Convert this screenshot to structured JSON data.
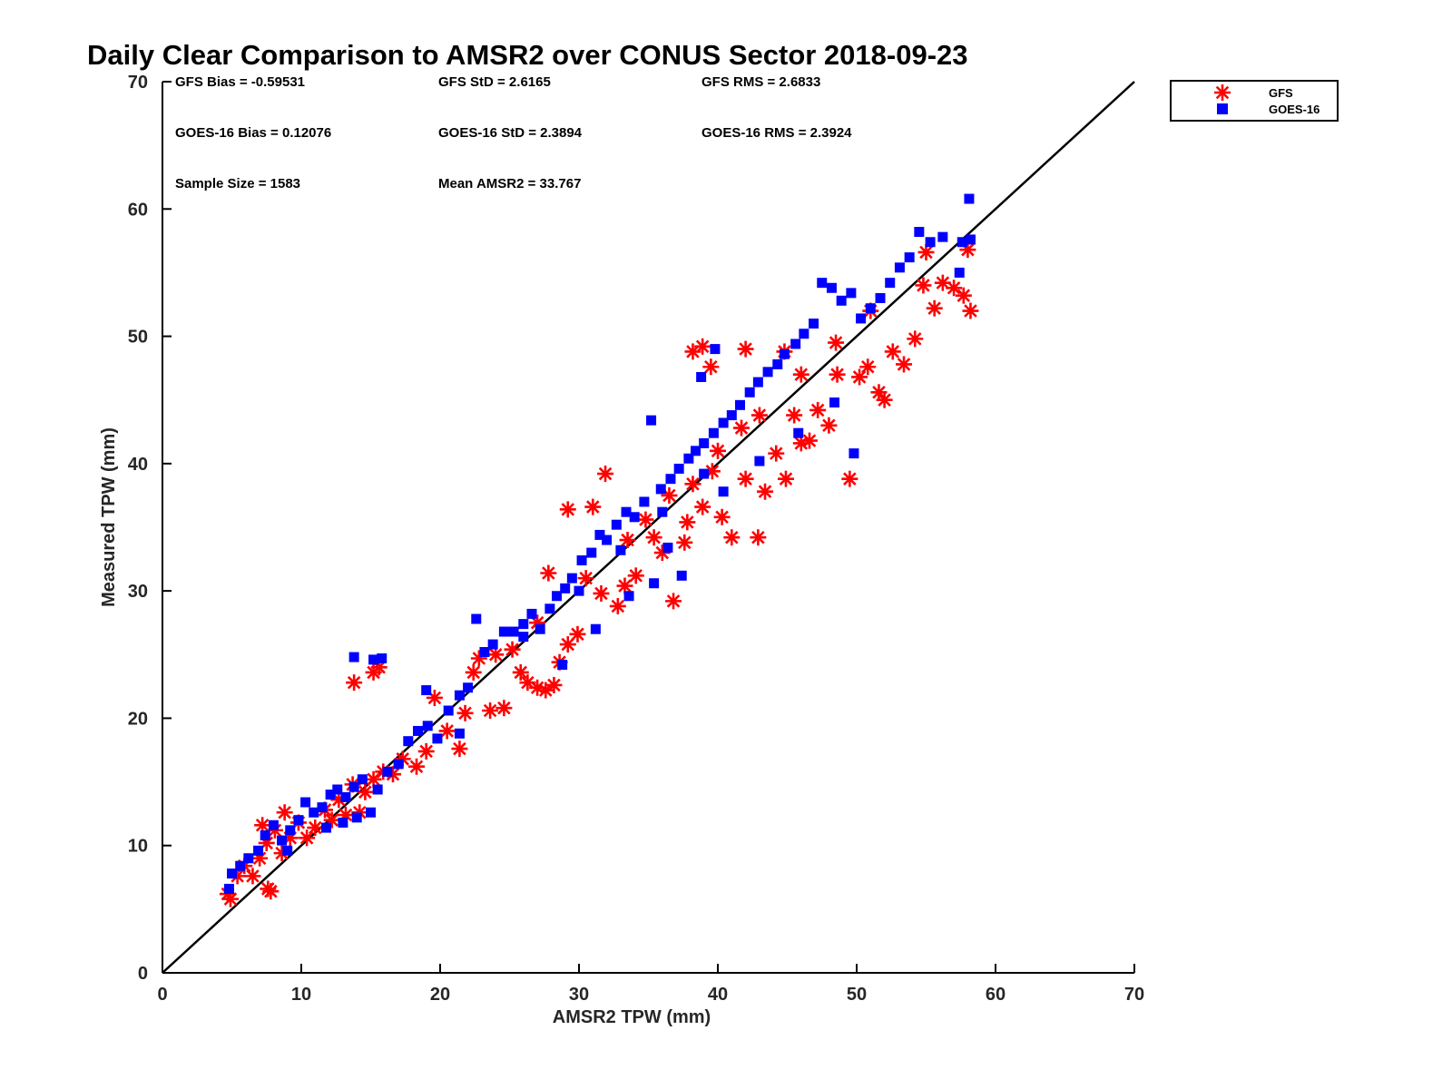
{
  "chart_data": {
    "type": "scatter",
    "title": "Daily Clear Comparison to AMSR2 over CONUS Sector 2018-09-23",
    "xlabel": "AMSR2 TPW (mm)",
    "ylabel": "Measured TPW (mm)",
    "xlim": [
      0,
      70
    ],
    "ylim": [
      0,
      70
    ],
    "x_ticks": [
      "0",
      "10",
      "20",
      "30",
      "40",
      "50",
      "60",
      "70"
    ],
    "y_ticks": [
      "0",
      "10",
      "20",
      "30",
      "40",
      "50",
      "60",
      "70"
    ],
    "grid": false,
    "legend_position": "outside-top-right",
    "reference_line": {
      "label": "1:1",
      "x": [
        0,
        70
      ],
      "y": [
        0,
        70
      ],
      "color": "#000000"
    },
    "stats": {
      "gfs_bias": "GFS Bias = -0.59531",
      "gfs_std": "GFS StD = 2.6165",
      "gfs_rms": "GFS RMS = 2.6833",
      "goes_bias": "GOES-16 Bias = 0.12076",
      "goes_std": "GOES-16 StD = 2.3894",
      "goes_rms": "GOES-16 RMS = 2.3924",
      "sample_size": "Sample Size = 1583",
      "mean_amsr2": "Mean AMSR2 = 33.767"
    },
    "series": [
      {
        "name": "GFS",
        "marker": "asterisk",
        "color": "#ff0000",
        "points": [
          [
            4.7,
            6.2
          ],
          [
            4.9,
            5.8
          ],
          [
            5.4,
            7.6
          ],
          [
            5.9,
            8.4
          ],
          [
            6.5,
            7.6
          ],
          [
            7.0,
            9.0
          ],
          [
            7.6,
            6.6
          ],
          [
            7.8,
            6.4
          ],
          [
            7.5,
            10.2
          ],
          [
            8.1,
            11.2
          ],
          [
            8.6,
            9.4
          ],
          [
            9.2,
            10.6
          ],
          [
            9.8,
            11.8
          ],
          [
            10.4,
            10.6
          ],
          [
            11.0,
            11.4
          ],
          [
            11.7,
            12.8
          ],
          [
            12.2,
            12.0
          ],
          [
            12.7,
            13.6
          ],
          [
            13.2,
            12.4
          ],
          [
            13.7,
            14.8
          ],
          [
            14.2,
            12.6
          ],
          [
            14.6,
            14.2
          ],
          [
            15.2,
            15.2
          ],
          [
            15.9,
            15.8
          ],
          [
            16.6,
            15.6
          ],
          [
            17.3,
            16.8
          ],
          [
            18.3,
            16.2
          ],
          [
            19.0,
            17.4
          ],
          [
            19.6,
            21.6
          ],
          [
            20.5,
            19.0
          ],
          [
            21.4,
            17.6
          ],
          [
            21.8,
            20.4
          ],
          [
            22.4,
            23.6
          ],
          [
            22.8,
            24.7
          ],
          [
            23.6,
            20.6
          ],
          [
            24.6,
            20.8
          ],
          [
            25.2,
            25.4
          ],
          [
            25.8,
            23.6
          ],
          [
            26.3,
            22.8
          ],
          [
            27.0,
            22.4
          ],
          [
            27.6,
            22.2
          ],
          [
            28.2,
            22.6
          ],
          [
            28.6,
            24.4
          ],
          [
            29.2,
            25.8
          ],
          [
            29.9,
            26.6
          ],
          [
            29.2,
            36.4
          ],
          [
            31.0,
            36.6
          ],
          [
            31.6,
            29.8
          ],
          [
            31.9,
            39.2
          ],
          [
            32.8,
            28.8
          ],
          [
            33.3,
            30.4
          ],
          [
            34.1,
            31.2
          ],
          [
            34.8,
            35.6
          ],
          [
            35.4,
            34.2
          ],
          [
            36.0,
            33.0
          ],
          [
            36.8,
            29.2
          ],
          [
            37.6,
            33.8
          ],
          [
            37.8,
            35.4
          ],
          [
            38.2,
            38.4
          ],
          [
            38.9,
            36.6
          ],
          [
            39.6,
            39.4
          ],
          [
            40.3,
            35.8
          ],
          [
            41.0,
            34.2
          ],
          [
            41.7,
            42.8
          ],
          [
            42.0,
            38.8
          ],
          [
            42.9,
            34.2
          ],
          [
            43.4,
            37.8
          ],
          [
            44.2,
            40.8
          ],
          [
            44.9,
            38.8
          ],
          [
            45.5,
            43.8
          ],
          [
            46.0,
            41.6
          ],
          [
            46.6,
            41.8
          ],
          [
            47.2,
            44.2
          ],
          [
            48.0,
            43.0
          ],
          [
            48.6,
            47.0
          ],
          [
            49.5,
            38.8
          ],
          [
            50.2,
            46.8
          ],
          [
            50.8,
            47.6
          ],
          [
            51.6,
            45.6
          ],
          [
            52.0,
            45.0
          ],
          [
            52.6,
            48.8
          ],
          [
            53.4,
            47.8
          ],
          [
            54.2,
            49.8
          ],
          [
            54.8,
            54.0
          ],
          [
            55.6,
            52.2
          ],
          [
            57.0,
            53.8
          ],
          [
            57.7,
            53.2
          ],
          [
            58.2,
            52.0
          ],
          [
            38.2,
            48.8
          ],
          [
            38.9,
            49.2
          ],
          [
            39.5,
            47.6
          ],
          [
            13.8,
            22.8
          ],
          [
            15.2,
            23.6
          ],
          [
            15.6,
            24.0
          ],
          [
            7.2,
            11.6
          ],
          [
            8.8,
            12.6
          ],
          [
            55.0,
            56.6
          ],
          [
            56.2,
            54.2
          ],
          [
            58.0,
            56.8
          ],
          [
            30.5,
            31.0
          ],
          [
            33.5,
            34.0
          ],
          [
            36.5,
            37.5
          ],
          [
            40.0,
            41.0
          ],
          [
            43.0,
            43.8
          ],
          [
            46.0,
            47.0
          ],
          [
            48.5,
            49.5
          ],
          [
            51.0,
            52.0
          ],
          [
            24.0,
            25.0
          ],
          [
            27.0,
            27.5
          ],
          [
            44.8,
            48.8
          ],
          [
            42.0,
            49.0
          ],
          [
            27.8,
            31.4
          ]
        ]
      },
      {
        "name": "GOES-16",
        "marker": "square",
        "color": "#0000ff",
        "points": [
          [
            4.8,
            6.6
          ],
          [
            5.0,
            7.8
          ],
          [
            5.6,
            8.4
          ],
          [
            6.2,
            9.0
          ],
          [
            6.9,
            9.6
          ],
          [
            7.4,
            10.8
          ],
          [
            8.0,
            11.6
          ],
          [
            8.6,
            10.4
          ],
          [
            9.2,
            11.2
          ],
          [
            9.8,
            12.0
          ],
          [
            10.3,
            13.4
          ],
          [
            10.9,
            12.6
          ],
          [
            11.5,
            13.0
          ],
          [
            12.1,
            14.0
          ],
          [
            12.6,
            14.4
          ],
          [
            13.2,
            13.8
          ],
          [
            13.8,
            14.6
          ],
          [
            14.4,
            15.2
          ],
          [
            15.0,
            12.6
          ],
          [
            15.5,
            14.4
          ],
          [
            16.2,
            15.8
          ],
          [
            17.0,
            16.4
          ],
          [
            17.7,
            18.2
          ],
          [
            18.4,
            19.0
          ],
          [
            19.1,
            19.4
          ],
          [
            19.8,
            18.4
          ],
          [
            20.6,
            20.6
          ],
          [
            21.4,
            21.8
          ],
          [
            22.0,
            22.4
          ],
          [
            22.6,
            27.8
          ],
          [
            23.2,
            25.2
          ],
          [
            23.8,
            25.8
          ],
          [
            24.6,
            26.8
          ],
          [
            25.3,
            26.8
          ],
          [
            26.0,
            27.4
          ],
          [
            26.6,
            28.2
          ],
          [
            27.2,
            27.0
          ],
          [
            27.9,
            28.6
          ],
          [
            28.4,
            29.6
          ],
          [
            29.0,
            30.2
          ],
          [
            29.5,
            31.0
          ],
          [
            30.2,
            32.4
          ],
          [
            30.9,
            33.0
          ],
          [
            31.5,
            34.4
          ],
          [
            32.0,
            34.0
          ],
          [
            32.7,
            35.2
          ],
          [
            33.4,
            36.2
          ],
          [
            34.0,
            35.8
          ],
          [
            34.7,
            37.0
          ],
          [
            35.2,
            43.4
          ],
          [
            35.9,
            38.0
          ],
          [
            36.6,
            38.8
          ],
          [
            37.2,
            39.6
          ],
          [
            37.9,
            40.4
          ],
          [
            38.4,
            41.0
          ],
          [
            39.0,
            41.6
          ],
          [
            39.7,
            42.4
          ],
          [
            40.4,
            43.2
          ],
          [
            41.0,
            43.8
          ],
          [
            41.6,
            44.6
          ],
          [
            42.3,
            45.6
          ],
          [
            42.9,
            46.4
          ],
          [
            43.6,
            47.2
          ],
          [
            44.3,
            47.8
          ],
          [
            44.8,
            48.6
          ],
          [
            45.6,
            49.4
          ],
          [
            46.2,
            50.2
          ],
          [
            46.9,
            51.0
          ],
          [
            47.5,
            54.2
          ],
          [
            48.2,
            53.8
          ],
          [
            48.9,
            52.8
          ],
          [
            49.6,
            53.4
          ],
          [
            50.3,
            51.4
          ],
          [
            51.0,
            52.2
          ],
          [
            51.7,
            53.0
          ],
          [
            52.4,
            54.2
          ],
          [
            53.1,
            55.4
          ],
          [
            53.8,
            56.2
          ],
          [
            54.5,
            58.2
          ],
          [
            55.3,
            57.4
          ],
          [
            56.2,
            57.8
          ],
          [
            57.4,
            55.0
          ],
          [
            57.6,
            57.4
          ],
          [
            58.1,
            60.8
          ],
          [
            58.2,
            57.6
          ],
          [
            13.8,
            24.8
          ],
          [
            15.2,
            24.6
          ],
          [
            15.8,
            24.7
          ],
          [
            19.0,
            22.2
          ],
          [
            38.8,
            46.8
          ],
          [
            39.8,
            49.0
          ],
          [
            35.4,
            30.6
          ],
          [
            37.4,
            31.2
          ],
          [
            49.8,
            40.8
          ],
          [
            21.4,
            18.8
          ],
          [
            28.8,
            24.2
          ],
          [
            31.2,
            27.0
          ],
          [
            33.6,
            29.6
          ],
          [
            36.4,
            33.4
          ],
          [
            40.4,
            37.8
          ],
          [
            43.0,
            40.2
          ],
          [
            45.8,
            42.4
          ],
          [
            48.4,
            44.8
          ],
          [
            11.8,
            11.4
          ],
          [
            13.0,
            11.8
          ],
          [
            14.0,
            12.2
          ],
          [
            9.0,
            9.6
          ],
          [
            26.0,
            26.4
          ],
          [
            30.0,
            30.0
          ],
          [
            33.0,
            33.2
          ],
          [
            36.0,
            36.2
          ],
          [
            39.0,
            39.2
          ]
        ]
      }
    ]
  }
}
